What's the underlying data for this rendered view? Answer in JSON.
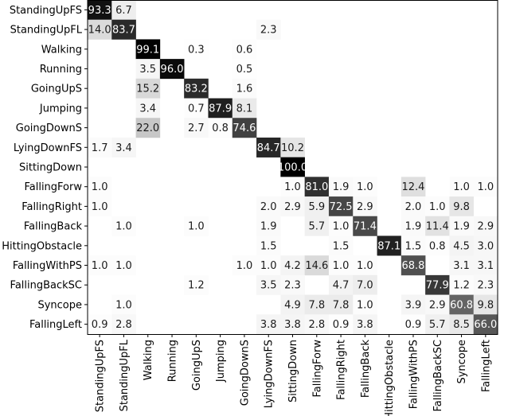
{
  "chart_data": {
    "type": "heatmap",
    "title": "",
    "xlabel": "",
    "ylabel": "",
    "color_scale": {
      "low": "#ffffff",
      "high": "#000000",
      "range": [
        0,
        100
      ]
    },
    "rows": [
      "StandingUpFS",
      "StandingUpFL",
      "Walking",
      "Running",
      "GoingUpS",
      "Jumping",
      "GoingDownS",
      "LyingDownFS",
      "SittingDown",
      "FallingForw",
      "FallingRight",
      "FallingBack",
      "HittingObstacle",
      "FallingWithPS",
      "FallingBackSC",
      "Syncope",
      "FallingLeft"
    ],
    "columns": [
      "StandingUpFS",
      "StandingUpFL",
      "Walking",
      "Running",
      "GoingUpS",
      "Jumping",
      "GoingDownS",
      "LyingDownFS",
      "SittingDown",
      "FallingForw",
      "FallingRight",
      "FallingBack",
      "HittingObstacle",
      "FallingWithPS",
      "FallingBackSC",
      "Syncope",
      "FallingLeft"
    ],
    "cells": [
      {
        "row": 0,
        "col": 0,
        "value": 93.3
      },
      {
        "row": 0,
        "col": 1,
        "value": 6.7
      },
      {
        "row": 1,
        "col": 0,
        "value": 14.0
      },
      {
        "row": 1,
        "col": 1,
        "value": 83.7
      },
      {
        "row": 1,
        "col": 7,
        "value": 2.3
      },
      {
        "row": 2,
        "col": 2,
        "value": 99.1
      },
      {
        "row": 2,
        "col": 4,
        "value": 0.3
      },
      {
        "row": 2,
        "col": 6,
        "value": 0.6
      },
      {
        "row": 3,
        "col": 2,
        "value": 3.5
      },
      {
        "row": 3,
        "col": 3,
        "value": 96.0
      },
      {
        "row": 3,
        "col": 6,
        "value": 0.5
      },
      {
        "row": 4,
        "col": 2,
        "value": 15.2
      },
      {
        "row": 4,
        "col": 4,
        "value": 83.2
      },
      {
        "row": 4,
        "col": 6,
        "value": 1.6
      },
      {
        "row": 5,
        "col": 2,
        "value": 3.4
      },
      {
        "row": 5,
        "col": 4,
        "value": 0.7
      },
      {
        "row": 5,
        "col": 5,
        "value": 87.9
      },
      {
        "row": 5,
        "col": 6,
        "value": 8.1
      },
      {
        "row": 6,
        "col": 2,
        "value": 22.0
      },
      {
        "row": 6,
        "col": 4,
        "value": 2.7
      },
      {
        "row": 6,
        "col": 5,
        "value": 0.8
      },
      {
        "row": 6,
        "col": 6,
        "value": 74.6
      },
      {
        "row": 7,
        "col": 0,
        "value": 1.7
      },
      {
        "row": 7,
        "col": 1,
        "value": 3.4
      },
      {
        "row": 7,
        "col": 7,
        "value": 84.7
      },
      {
        "row": 7,
        "col": 8,
        "value": 10.2
      },
      {
        "row": 8,
        "col": 8,
        "value": 100.0
      },
      {
        "row": 9,
        "col": 0,
        "value": 1.0
      },
      {
        "row": 9,
        "col": 8,
        "value": 1.0
      },
      {
        "row": 9,
        "col": 9,
        "value": 81.0
      },
      {
        "row": 9,
        "col": 10,
        "value": 1.9
      },
      {
        "row": 9,
        "col": 11,
        "value": 1.0
      },
      {
        "row": 9,
        "col": 13,
        "value": 12.4
      },
      {
        "row": 9,
        "col": 15,
        "value": 1.0
      },
      {
        "row": 9,
        "col": 16,
        "value": 1.0
      },
      {
        "row": 10,
        "col": 0,
        "value": 1.0
      },
      {
        "row": 10,
        "col": 7,
        "value": 2.0
      },
      {
        "row": 10,
        "col": 8,
        "value": 2.9
      },
      {
        "row": 10,
        "col": 9,
        "value": 5.9
      },
      {
        "row": 10,
        "col": 10,
        "value": 72.5
      },
      {
        "row": 10,
        "col": 11,
        "value": 2.9
      },
      {
        "row": 10,
        "col": 13,
        "value": 2.0
      },
      {
        "row": 10,
        "col": 14,
        "value": 1.0
      },
      {
        "row": 10,
        "col": 15,
        "value": 9.8
      },
      {
        "row": 11,
        "col": 1,
        "value": 1.0
      },
      {
        "row": 11,
        "col": 4,
        "value": 1.0
      },
      {
        "row": 11,
        "col": 7,
        "value": 1.9
      },
      {
        "row": 11,
        "col": 9,
        "value": 5.7
      },
      {
        "row": 11,
        "col": 10,
        "value": 1.0
      },
      {
        "row": 11,
        "col": 11,
        "value": 71.4
      },
      {
        "row": 11,
        "col": 13,
        "value": 1.9
      },
      {
        "row": 11,
        "col": 14,
        "value": 11.4
      },
      {
        "row": 11,
        "col": 15,
        "value": 1.9
      },
      {
        "row": 11,
        "col": 16,
        "value": 2.9
      },
      {
        "row": 12,
        "col": 7,
        "value": 1.5
      },
      {
        "row": 12,
        "col": 10,
        "value": 1.5
      },
      {
        "row": 12,
        "col": 12,
        "value": 87.1
      },
      {
        "row": 12,
        "col": 13,
        "value": 1.5
      },
      {
        "row": 12,
        "col": 14,
        "value": 0.8
      },
      {
        "row": 12,
        "col": 15,
        "value": 4.5
      },
      {
        "row": 12,
        "col": 16,
        "value": 3.0
      },
      {
        "row": 13,
        "col": 0,
        "value": 1.0
      },
      {
        "row": 13,
        "col": 1,
        "value": 1.0
      },
      {
        "row": 13,
        "col": 6,
        "value": 1.0
      },
      {
        "row": 13,
        "col": 7,
        "value": 1.0
      },
      {
        "row": 13,
        "col": 8,
        "value": 4.2
      },
      {
        "row": 13,
        "col": 9,
        "value": 14.6
      },
      {
        "row": 13,
        "col": 10,
        "value": 1.0
      },
      {
        "row": 13,
        "col": 11,
        "value": 1.0
      },
      {
        "row": 13,
        "col": 13,
        "value": 68.8
      },
      {
        "row": 13,
        "col": 15,
        "value": 3.1
      },
      {
        "row": 13,
        "col": 16,
        "value": 3.1
      },
      {
        "row": 14,
        "col": 4,
        "value": 1.2
      },
      {
        "row": 14,
        "col": 7,
        "value": 3.5
      },
      {
        "row": 14,
        "col": 8,
        "value": 2.3
      },
      {
        "row": 14,
        "col": 10,
        "value": 4.7
      },
      {
        "row": 14,
        "col": 11,
        "value": 7.0
      },
      {
        "row": 14,
        "col": 14,
        "value": 77.9
      },
      {
        "row": 14,
        "col": 15,
        "value": 1.2
      },
      {
        "row": 14,
        "col": 16,
        "value": 2.3
      },
      {
        "row": 15,
        "col": 1,
        "value": 1.0
      },
      {
        "row": 15,
        "col": 8,
        "value": 4.9
      },
      {
        "row": 15,
        "col": 9,
        "value": 7.8
      },
      {
        "row": 15,
        "col": 10,
        "value": 7.8
      },
      {
        "row": 15,
        "col": 11,
        "value": 1.0
      },
      {
        "row": 15,
        "col": 13,
        "value": 3.9
      },
      {
        "row": 15,
        "col": 14,
        "value": 2.9
      },
      {
        "row": 15,
        "col": 15,
        "value": 60.8
      },
      {
        "row": 15,
        "col": 16,
        "value": 9.8
      },
      {
        "row": 16,
        "col": 0,
        "value": 0.9
      },
      {
        "row": 16,
        "col": 1,
        "value": 2.8
      },
      {
        "row": 16,
        "col": 7,
        "value": 3.8
      },
      {
        "row": 16,
        "col": 8,
        "value": 3.8
      },
      {
        "row": 16,
        "col": 9,
        "value": 2.8
      },
      {
        "row": 16,
        "col": 10,
        "value": 0.9
      },
      {
        "row": 16,
        "col": 11,
        "value": 3.8
      },
      {
        "row": 16,
        "col": 13,
        "value": 0.9
      },
      {
        "row": 16,
        "col": 14,
        "value": 5.7
      },
      {
        "row": 16,
        "col": 15,
        "value": 8.5
      },
      {
        "row": 16,
        "col": 16,
        "value": 66.0
      }
    ]
  }
}
